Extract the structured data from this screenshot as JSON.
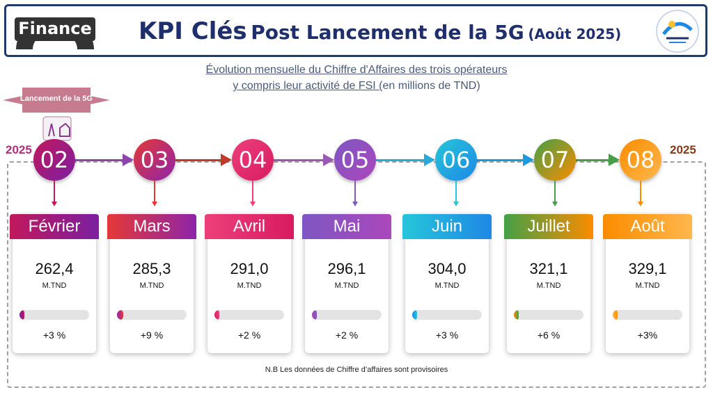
{
  "header": {
    "badge": "Finance",
    "title_kpi": "KPI Clés",
    "title_rest": "Post Lancement de la 5G",
    "title_date": "(Août 2025)"
  },
  "subtitle": {
    "line1": "Évolution mensuelle du Chiffre d'Affaires des trois opérateurs",
    "line2_underlined": "y compris leur activité de FSI (",
    "line2_rest": "en millions de TND)"
  },
  "launch": {
    "label": "Lancement de la 5G"
  },
  "years": {
    "left": "2025",
    "right": "2025"
  },
  "months": [
    {
      "num": "02",
      "name": "Février",
      "value": "262,4",
      "unit": "M.TND",
      "pct": "+3 %",
      "progress": 0.03
    },
    {
      "num": "03",
      "name": "Mars",
      "value": "285,3",
      "unit": "M.TND",
      "pct": "+9 %",
      "progress": 0.09
    },
    {
      "num": "04",
      "name": "Avril",
      "value": "291,0",
      "unit": "M.TND",
      "pct": "+2 %",
      "progress": 0.02
    },
    {
      "num": "05",
      "name": "Mai",
      "value": "296,1",
      "unit": "M.TND",
      "pct": "+2 %",
      "progress": 0.02
    },
    {
      "num": "06",
      "name": "Juin",
      "value": "304,0",
      "unit": "M.TND",
      "pct": "+3 %",
      "progress": 0.03
    },
    {
      "num": "07",
      "name": "Juillet",
      "value": "321,1",
      "unit": "M.TND",
      "pct": "+6 %",
      "progress": 0.06
    },
    {
      "num": "08",
      "name": "Août",
      "value": "329,1",
      "unit": "M.TND",
      "pct": "+3%",
      "progress": 0.03
    }
  ],
  "colors": {
    "navy": "#1f2f6e",
    "m02": [
      "#c2185b",
      "#7b1fa2"
    ],
    "m03": [
      "#e53935",
      "#8e24aa"
    ],
    "m04": [
      "#ec407a",
      "#d81b60"
    ],
    "m05": [
      "#7e57c2",
      "#ab47bc"
    ],
    "m06": [
      "#26c6da",
      "#1e88e5"
    ],
    "m07": [
      "#43a047",
      "#fb8c00"
    ],
    "m08": [
      "#fb8c00",
      "#ffb74d"
    ]
  },
  "note": "N.B Les données de Chiffre d’affaires sont provisoires"
}
